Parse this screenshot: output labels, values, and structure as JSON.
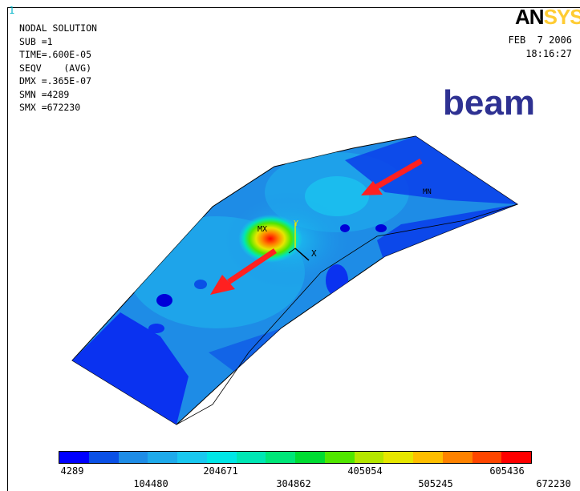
{
  "window_number": "1",
  "info_lines": [
    "NODAL SOLUTION",
    "SUB =1",
    "TIME=.600E-05",
    "SEQV    (AVG)",
    "DMX =.365E-07",
    "SMN =4289",
    "SMX =672230"
  ],
  "logo": {
    "part1": "AN",
    "part2": "SYS"
  },
  "date": "FEB  7 2006",
  "time": "18:16:27",
  "overlay_title": "beam",
  "markers": {
    "max": "MX",
    "min": "MN",
    "axis_x": "X",
    "axis_y": "Y"
  },
  "legend": {
    "colors": [
      "#0000ff",
      "#0a50e6",
      "#1e8ce6",
      "#1eaaeb",
      "#19c8f0",
      "#00e6e6",
      "#00e6b4",
      "#00e678",
      "#00dc32",
      "#50e600",
      "#b4e600",
      "#e6e600",
      "#ffbe00",
      "#ff8200",
      "#ff4600",
      "#ff0000"
    ],
    "values_upper": [
      "4289",
      "204671",
      "405054",
      "605436"
    ],
    "values_lower": [
      "104480",
      "304862",
      "505245",
      "672230"
    ]
  }
}
